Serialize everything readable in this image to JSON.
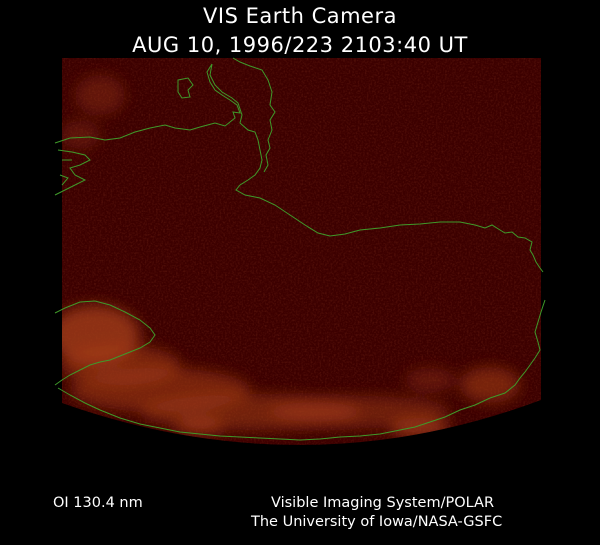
{
  "header": {
    "title": "VIS Earth Camera",
    "timestamp": "AUG 10, 1996/223 2103:40 UT"
  },
  "image": {
    "background_color": "#3c0000",
    "aurora_color": "#a8401a",
    "coastline_color": "#3f9a2a"
  },
  "footer": {
    "filter": "OI  130.4 nm",
    "instrument": "Visible Imaging System/POLAR",
    "institution": "The University of Iowa/NASA-GSFC"
  }
}
